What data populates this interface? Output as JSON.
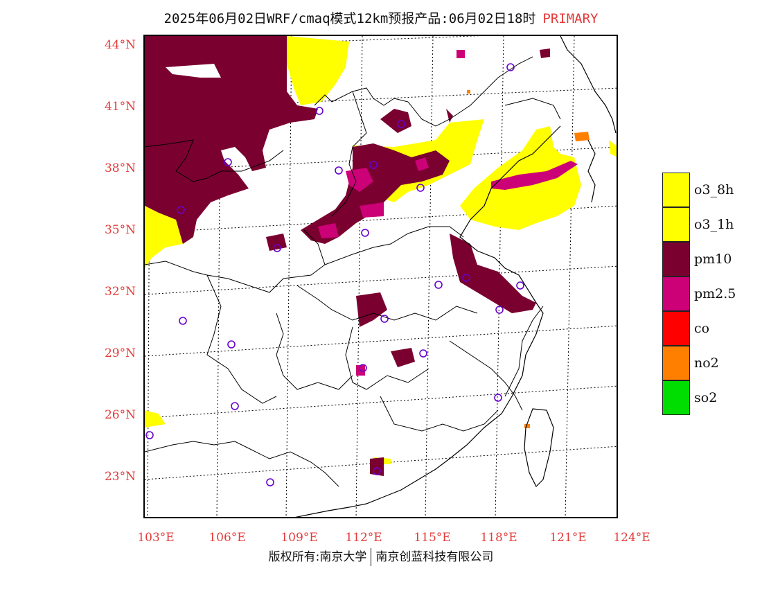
{
  "title": {
    "main": "2025年06月02日WRF/cmaq模式12km预报产品:06月02日18时",
    "tag": "PRIMARY"
  },
  "map": {
    "latitudes": [
      "44°N",
      "41°N",
      "38°N",
      "35°N",
      "32°N",
      "29°N",
      "26°N",
      "23°N"
    ],
    "longitudes": [
      "103°E",
      "106°E",
      "109°E",
      "112°E",
      "115°E",
      "118°E",
      "121°E",
      "124°E"
    ]
  },
  "legend": [
    {
      "label": "o3_8h",
      "color": "#ffff00"
    },
    {
      "label": "o3_1h",
      "color": "#ffff00"
    },
    {
      "label": "pm10",
      "color": "#7a0030"
    },
    {
      "label": "pm2.5",
      "color": "#cc0077"
    },
    {
      "label": "co",
      "color": "#ff0000"
    },
    {
      "label": "no2",
      "color": "#ff7f00"
    },
    {
      "label": "so2",
      "color": "#00dd00"
    }
  ],
  "footer": {
    "left": "版权所有:南京大学",
    "right": "南京创蓝科技有限公司"
  }
}
